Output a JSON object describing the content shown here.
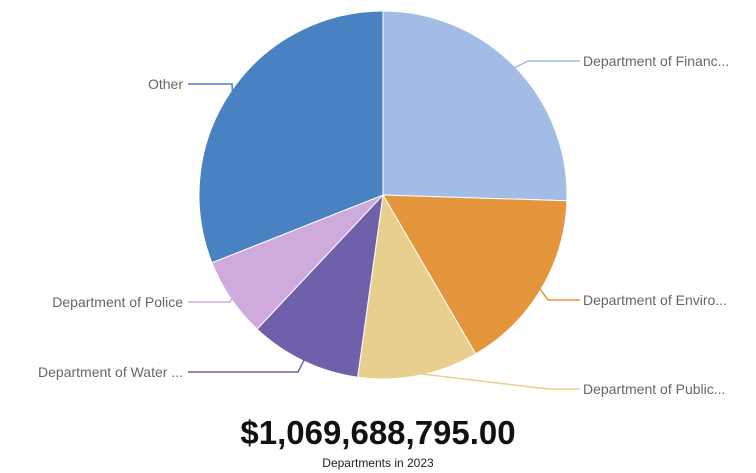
{
  "chart_data": {
    "type": "pie",
    "start_angle": "top, clockwise",
    "slices": [
      {
        "label": "Department of Financ...",
        "value": 25.5,
        "color": "#a2bce6"
      },
      {
        "label": "Department of Enviro...",
        "value": 16.1,
        "color": "#e5963c"
      },
      {
        "label": "Department of Public...",
        "value": 10.6,
        "color": "#e8cf8d"
      },
      {
        "label": "Department of Water ...",
        "value": 9.8,
        "color": "#705fab"
      },
      {
        "label": "Department of Police",
        "value": 7.0,
        "color": "#cfaadc"
      },
      {
        "label": "Other",
        "value": 31.0,
        "color": "#4882c2"
      }
    ],
    "legend": "none (leader-line labels)"
  },
  "summary": {
    "total": "$1,069,688,795.00",
    "caption": "Departments in 2023"
  }
}
